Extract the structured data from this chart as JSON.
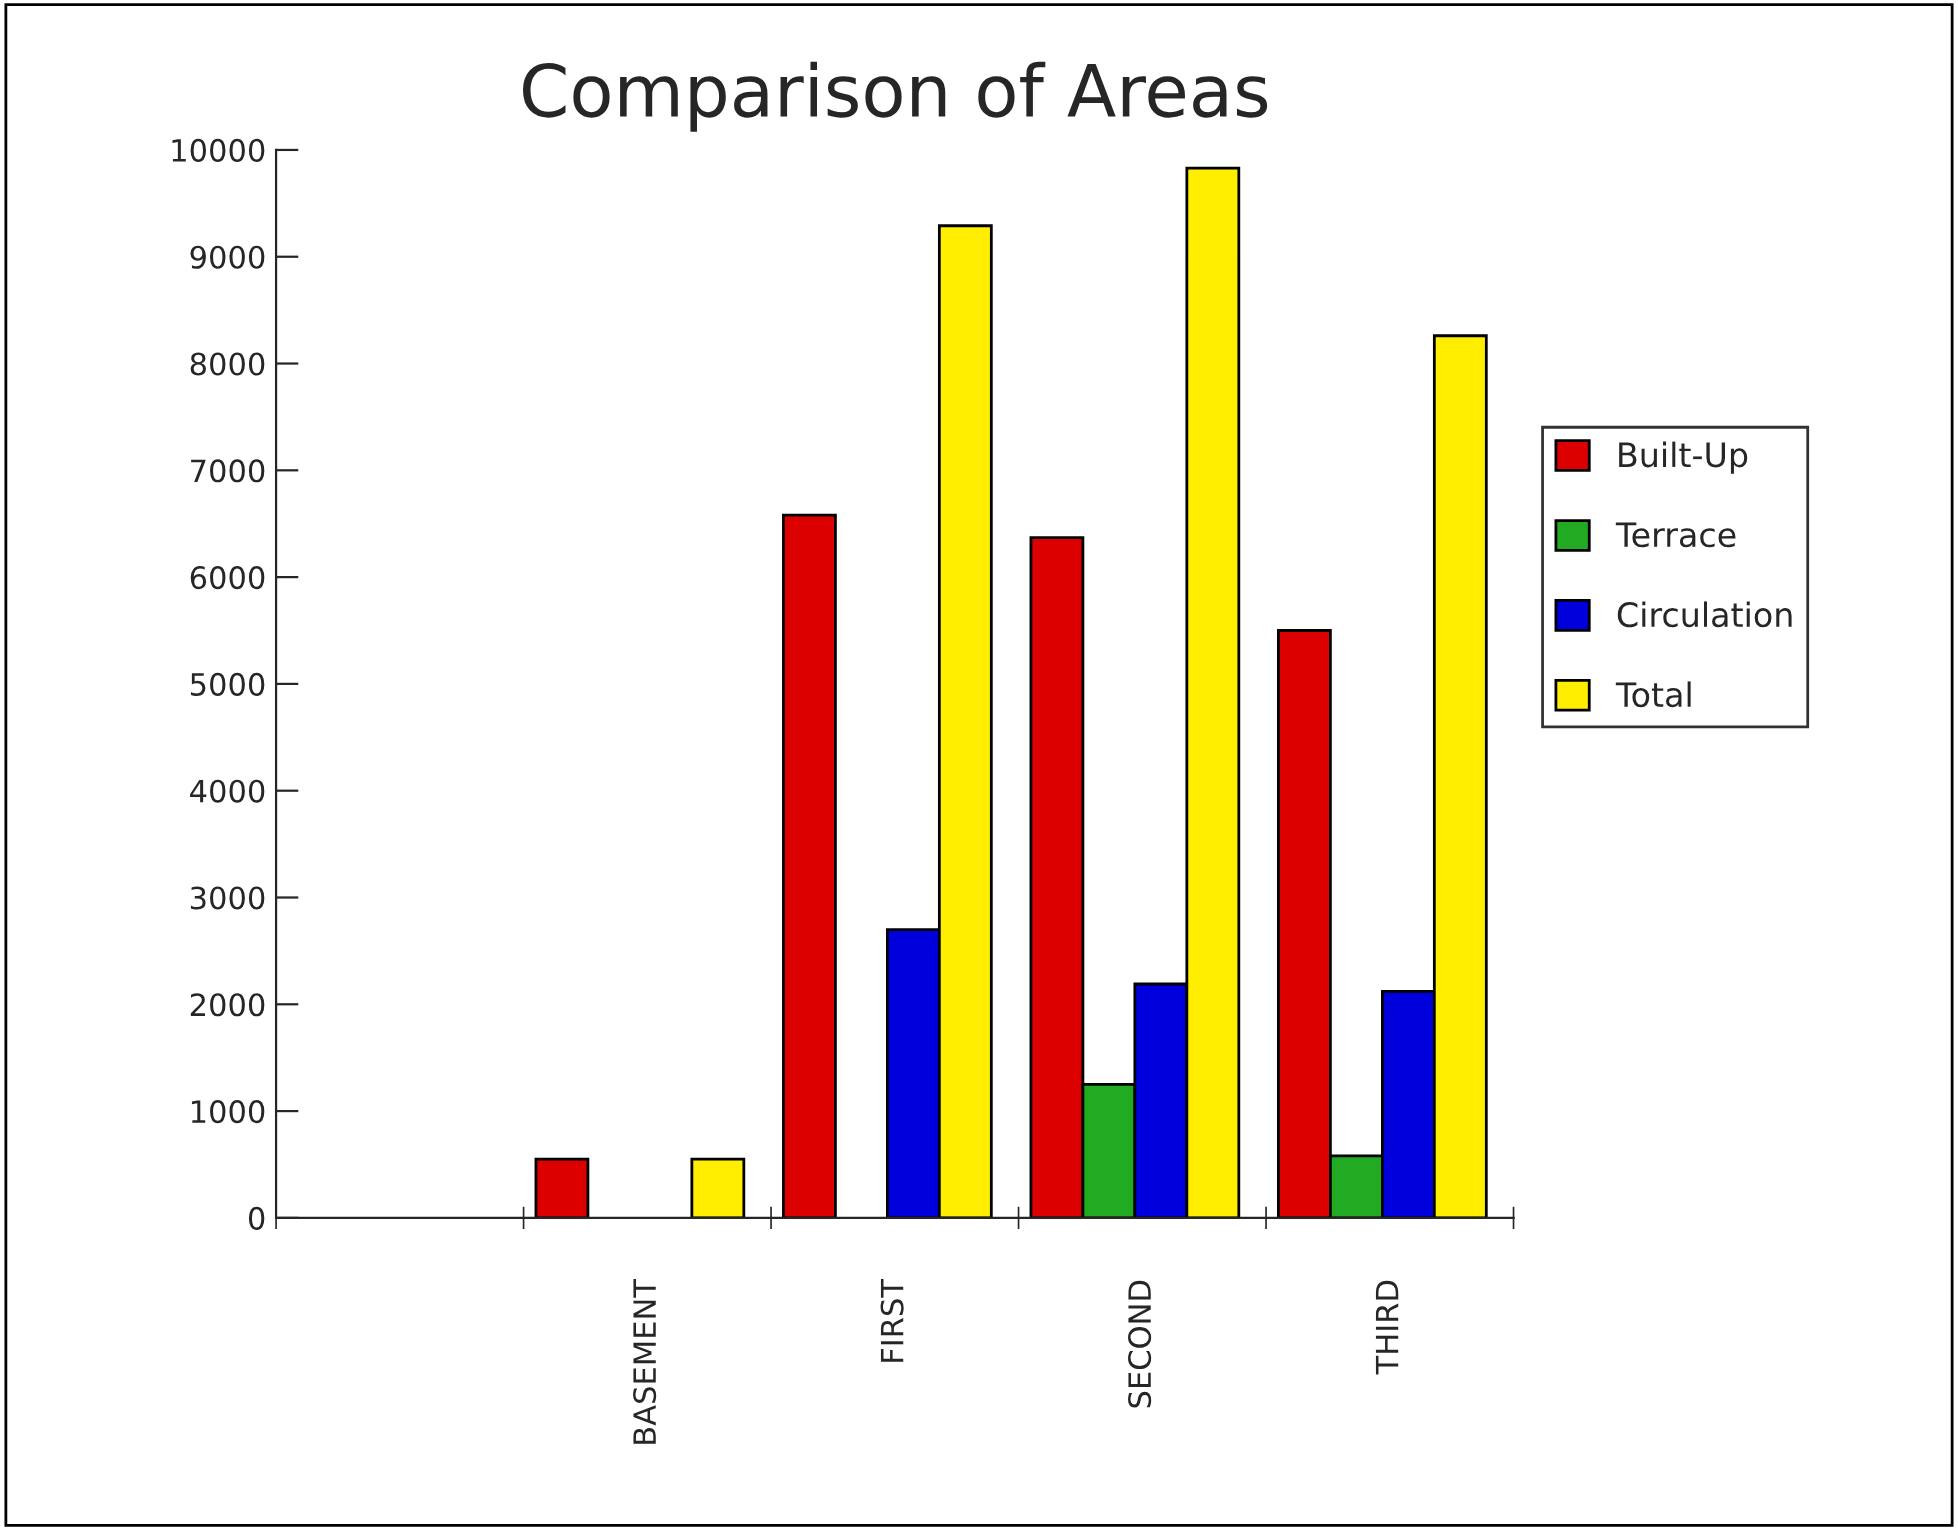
{
  "chart_data": {
    "type": "bar",
    "title": "Comparison of Areas",
    "categories": [
      null,
      "BASEMENT",
      "FIRST",
      "SECOND",
      "THIRD"
    ],
    "series": [
      {
        "name": "Built-Up",
        "color": "#dd0000",
        "values": [
          null,
          550,
          6580,
          6370,
          5500
        ]
      },
      {
        "name": "Terrace",
        "color": "#22aa22",
        "values": [
          null,
          null,
          null,
          1250,
          580
        ]
      },
      {
        "name": "Circulation",
        "color": "#0000dd",
        "values": [
          null,
          null,
          2700,
          2190,
          2120
        ]
      },
      {
        "name": "Total",
        "color": "#ffee00",
        "values": [
          null,
          550,
          9290,
          9830,
          8260
        ]
      }
    ],
    "ylim": [
      0,
      10000
    ],
    "yticks": [
      0,
      1000,
      2000,
      3000,
      4000,
      5000,
      6000,
      7000,
      8000,
      9000,
      10000
    ],
    "grid": false,
    "legend": "right"
  }
}
